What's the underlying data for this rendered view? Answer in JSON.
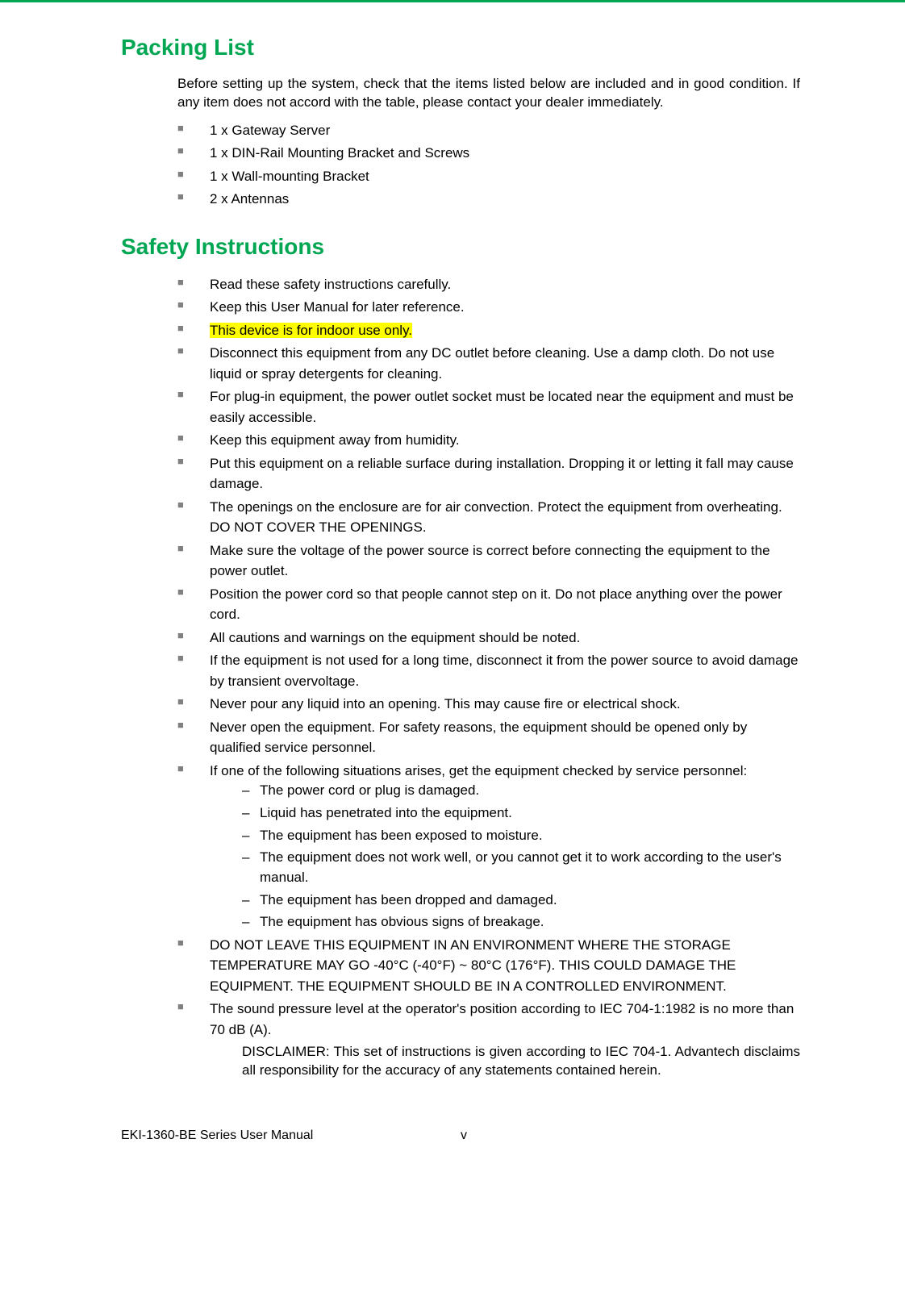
{
  "headings": {
    "packing_list": "Packing List",
    "safety_instructions": "Safety Instructions"
  },
  "packing": {
    "intro": "Before setting up the system, check that the items listed below are included and in good condition. If any item does not accord with the table, please contact your dealer immediately.",
    "items": [
      "1 x Gateway Server",
      "1 x DIN-Rail Mounting Bracket and Screws",
      "1 x Wall-mounting Bracket",
      "2 x Antennas"
    ]
  },
  "safety": {
    "items": {
      "i0": "Read these safety instructions carefully.",
      "i1": "Keep this User Manual for later reference.",
      "i2": "This device is for indoor use only.",
      "i3": "Disconnect this equipment from any DC outlet before cleaning. Use a damp cloth. Do not use liquid or spray detergents for cleaning.",
      "i4": "For plug-in equipment, the power outlet socket must be located near the equipment and must be easily accessible.",
      "i5": "Keep this equipment away from humidity.",
      "i6": "Put this equipment on a reliable surface during installation. Dropping it or letting it fall may cause damage.",
      "i7": "The openings on the enclosure are for air convection. Protect the equipment from overheating. DO NOT COVER THE OPENINGS.",
      "i8": "Make sure the voltage of the power source is correct before connecting the equipment to the power outlet.",
      "i9": "Position the power cord so that people cannot step on it. Do not place anything over the power cord.",
      "i10": "All cautions and warnings on the equipment should be noted.",
      "i11": "If the equipment is not used for a long time, disconnect it from the power source to avoid damage by transient overvoltage.",
      "i12": "Never pour any liquid into an opening. This may cause fire or electrical shock.",
      "i13": "Never open the equipment. For safety reasons, the equipment should be opened only by qualified service personnel.",
      "i14": "If one of the following situations arises, get the equipment checked by service personnel:",
      "i15": "DO NOT LEAVE THIS EQUIPMENT IN AN ENVIRONMENT WHERE THE STORAGE TEMPERATURE MAY GO -40°C (-40°F) ~ 80°C (176°F). THIS COULD DAMAGE THE EQUIPMENT. THE EQUIPMENT SHOULD BE IN A CONTROLLED ENVIRONMENT.",
      "i16": "The sound pressure level at the operator's position according to IEC 704-1:1982 is no more than 70 dB (A)."
    },
    "sub_items": {
      "s0": "The power cord or plug is damaged.",
      "s1": "Liquid has penetrated into the equipment.",
      "s2": "The equipment has been exposed to moisture.",
      "s3": "The equipment does not work well, or you cannot get it to work according to the user's manual.",
      "s4": "The equipment has been dropped and damaged.",
      "s5": "The equipment has obvious signs of breakage."
    },
    "disclaimer": "DISCLAIMER: This set of instructions is given according to IEC 704-1. Advantech disclaims all responsibility for the accuracy of any statements contained herein."
  },
  "footer": {
    "left": "EKI-1360-BE Series User Manual",
    "center": "v"
  },
  "colors": {
    "green": "#00a651",
    "highlight": "#ffff00",
    "bullet": "#808080"
  }
}
